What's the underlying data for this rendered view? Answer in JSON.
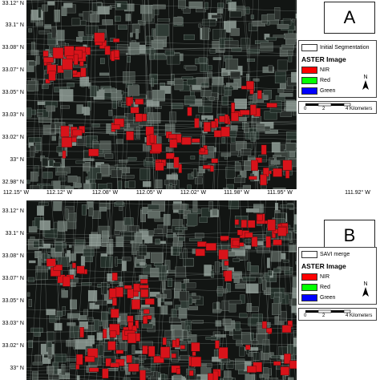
{
  "panels": [
    {
      "label": "A",
      "legend": {
        "layer": "Initial Segmentation",
        "title": "ASTER Image",
        "bands": [
          {
            "name": "NIR",
            "color": "#ff0000"
          },
          {
            "name": "Red",
            "color": "#00ff00"
          },
          {
            "name": "Green",
            "color": "#0000ff"
          }
        ]
      },
      "lat_labels": [
        "33.12° N",
        "33.1° N",
        "33.08° N",
        "33.07° N",
        "33.05° N",
        "33.03° N",
        "33.02° N",
        "33° N",
        "32.98° N"
      ]
    },
    {
      "label": "B",
      "legend": {
        "layer": "SAVI merge",
        "title": "ASTER Image",
        "bands": [
          {
            "name": "NIR",
            "color": "#ff0000"
          },
          {
            "name": "Red",
            "color": "#00ff00"
          },
          {
            "name": "Green",
            "color": "#0000ff"
          }
        ]
      },
      "lat_labels": [
        "33.12° N",
        "33.1° N",
        "33.08° N",
        "33.07° N",
        "33.05° N",
        "33.03° N",
        "33.02° N",
        "33° N"
      ]
    }
  ],
  "lon_labels": [
    "112.15° W",
    "112.12° W",
    "112.08° W",
    "112.05° W",
    "112.02° W",
    "111.98° W",
    "111.95° W",
    "111.92° W"
  ],
  "scale": {
    "zero": "0",
    "two": "2",
    "four": "4 Kilometers"
  },
  "north_label": "N",
  "colors": {
    "field_red": "#d8131a",
    "field_dark": "#2b3a33",
    "background": "#121513"
  }
}
